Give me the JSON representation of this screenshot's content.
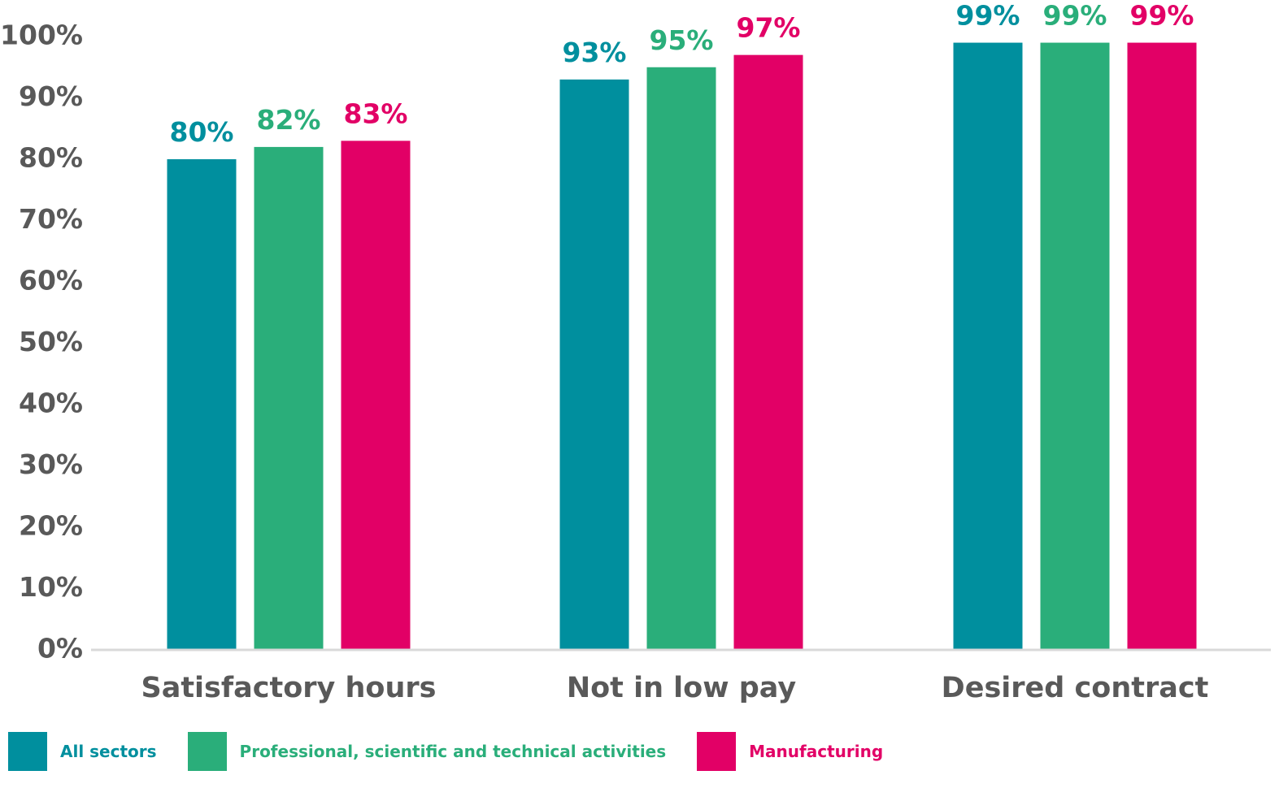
{
  "chart_data": {
    "type": "bar",
    "title": "",
    "xlabel": "",
    "ylabel": "",
    "categories": [
      "Satisfactory hours",
      "Not in low pay",
      "Desired contract"
    ],
    "series": [
      {
        "name": "All sectors",
        "color": "#008f9e",
        "values": [
          80,
          93,
          99
        ],
        "labels": [
          "80%",
          "93%",
          "99%"
        ]
      },
      {
        "name": "Professional, scientific and technical activities",
        "color": "#2aae7a",
        "values": [
          82,
          95,
          99
        ],
        "labels": [
          "82%",
          "95%",
          "99%"
        ]
      },
      {
        "name": "Manufacturing",
        "color": "#e20066",
        "values": [
          83,
          97,
          99
        ],
        "labels": [
          "83%",
          "97%",
          "99%"
        ]
      }
    ],
    "ylim": [
      0,
      100
    ],
    "yticks": [
      0,
      10,
      20,
      30,
      40,
      50,
      60,
      70,
      80,
      90,
      100
    ],
    "ytick_labels": [
      "0%",
      "10%",
      "20%",
      "30%",
      "40%",
      "50%",
      "60%",
      "70%",
      "80%",
      "90%",
      "100%"
    ],
    "grid": false,
    "legend_position": "bottom"
  }
}
